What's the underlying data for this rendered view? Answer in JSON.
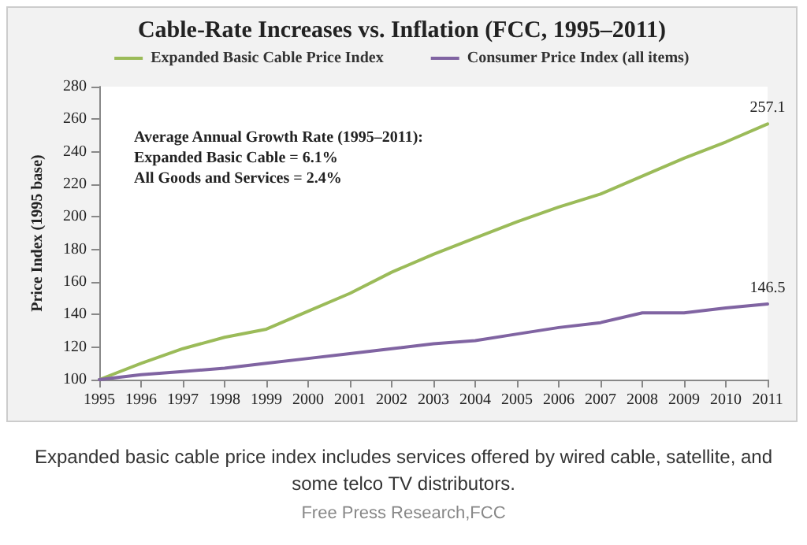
{
  "chart_data": {
    "type": "line",
    "title": "Cable-Rate Increases vs. Inflation (FCC, 1995–2011)",
    "ylabel": "Price Index (1995 base)",
    "categories": [
      "1995",
      "1996",
      "1997",
      "1998",
      "1999",
      "2000",
      "2001",
      "2002",
      "2003",
      "2004",
      "2005",
      "2006",
      "2007",
      "2008",
      "2009",
      "2010",
      "2011"
    ],
    "series": [
      {
        "name": "Expanded Basic Cable Price Index",
        "color": "#9bbb59",
        "values": [
          100,
          110,
          119,
          126,
          131,
          142,
          153,
          166,
          177,
          187,
          197,
          206,
          214,
          225,
          236,
          246,
          257.1
        ],
        "value_labels": [
          null,
          null,
          null,
          null,
          null,
          null,
          null,
          null,
          null,
          null,
          null,
          null,
          null,
          null,
          null,
          null,
          "257.1"
        ]
      },
      {
        "name": "Consumer Price Index (all items)",
        "color": "#8064a2",
        "values": [
          100,
          103,
          105,
          107,
          110,
          113,
          116,
          119,
          122,
          124,
          128,
          132,
          135,
          141,
          141,
          144,
          146.5
        ],
        "value_labels": [
          null,
          null,
          null,
          null,
          null,
          null,
          null,
          null,
          null,
          null,
          null,
          null,
          null,
          null,
          null,
          null,
          "146.5"
        ]
      }
    ],
    "ylim": [
      100,
      280
    ],
    "yticks": [
      100,
      120,
      140,
      160,
      180,
      200,
      220,
      240,
      260,
      280
    ],
    "grid": false,
    "legend": "top",
    "marker": "none",
    "line_style": "solid",
    "annotations": [
      "Average Annual Growth Rate (1995–2011):",
      "Expanded Basic Cable = 6.1%",
      "All Goods and Services = 2.4%",
      "Expanded basic cable price index includes services offered by wired cable, satellite, and some telco TV distributors.",
      "Free Press Research,FCC"
    ]
  }
}
